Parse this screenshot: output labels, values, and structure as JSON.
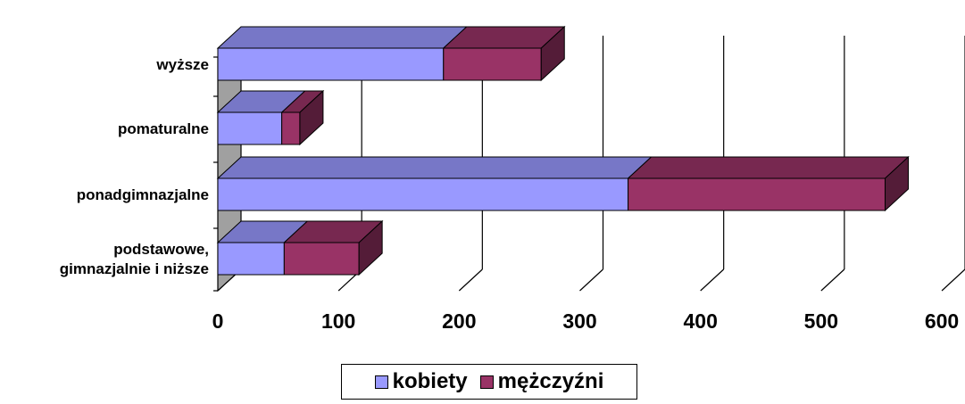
{
  "chart_data": {
    "type": "bar",
    "orientation": "horizontal",
    "stacked": true,
    "three_d": true,
    "categories": [
      "podstawowe, gimnazjalnie i niższe",
      "ponadgimnazjalne",
      "pomaturalne",
      "wyższe"
    ],
    "category_lines": [
      [
        "podstawowe,",
        "gimnazjalnie i niższe"
      ],
      [
        "ponadgimnazjalne"
      ],
      [
        "pomaturalne"
      ],
      [
        "wyższe"
      ]
    ],
    "series": [
      {
        "name": "kobiety",
        "values": [
          55,
          340,
          53,
          187
        ],
        "color": "#9999ff"
      },
      {
        "name": "mężczyźni",
        "values": [
          62,
          213,
          15,
          81
        ],
        "color": "#993366"
      }
    ],
    "xlim": [
      0,
      600
    ],
    "x_ticks": [
      "0",
      "100",
      "200",
      "300",
      "400",
      "500",
      "600"
    ],
    "grid": true,
    "legend_position": "bottom"
  }
}
